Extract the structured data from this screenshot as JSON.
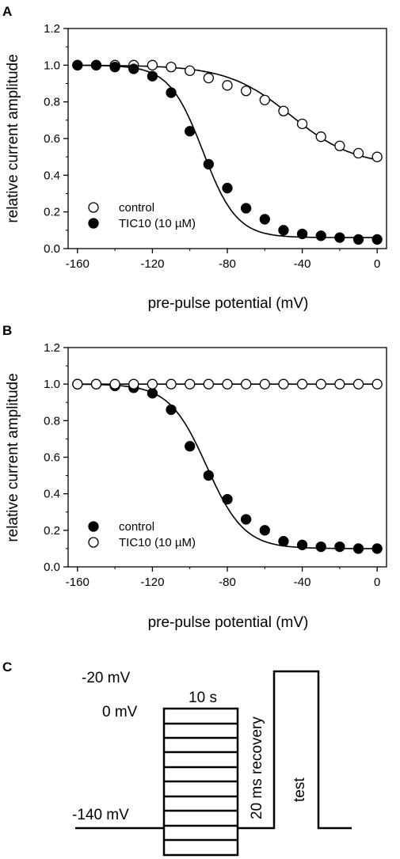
{
  "panels": {
    "A": {
      "label": "A"
    },
    "B": {
      "label": "B"
    },
    "C": {
      "label": "C"
    }
  },
  "chart_data": [
    {
      "type": "scatter",
      "panel": "A",
      "xlabel": "pre-pulse potential (mV)",
      "ylabel": "relative current amplitude",
      "xlim": [
        -165,
        5
      ],
      "ylim": [
        0.0,
        1.2
      ],
      "xticks": [
        "-160",
        "-120",
        "-80",
        "-40",
        "0"
      ],
      "yticks": [
        "0.0",
        "0.2",
        "0.4",
        "0.6",
        "0.8",
        "1.0",
        "1.2"
      ],
      "grid": false,
      "legend_position": "bottom-left",
      "series": [
        {
          "name": "control",
          "marker": "open-circle",
          "fit": "boltzmann",
          "x": [
            -160,
            -150,
            -140,
            -130,
            -120,
            -110,
            -100,
            -90,
            -80,
            -70,
            -60,
            -50,
            -40,
            -30,
            -20,
            -10,
            0
          ],
          "y": [
            1.0,
            1.0,
            1.0,
            1.0,
            1.0,
            0.99,
            0.97,
            0.93,
            0.89,
            0.86,
            0.81,
            0.75,
            0.68,
            0.61,
            0.56,
            0.52,
            0.5
          ]
        },
        {
          "name": "TIC10 (10 µM)",
          "marker": "filled-circle",
          "fit": "boltzmann",
          "x": [
            -160,
            -150,
            -140,
            -130,
            -120,
            -110,
            -100,
            -90,
            -80,
            -70,
            -60,
            -50,
            -40,
            -30,
            -20,
            -10,
            0
          ],
          "y": [
            1.0,
            1.0,
            0.99,
            0.98,
            0.94,
            0.85,
            0.64,
            0.46,
            0.33,
            0.22,
            0.16,
            0.1,
            0.08,
            0.07,
            0.06,
            0.05,
            0.05
          ]
        }
      ]
    },
    {
      "type": "scatter",
      "panel": "B",
      "xlabel": "pre-pulse potential (mV)",
      "ylabel": "relative current amplitude",
      "xlim": [
        -165,
        5
      ],
      "ylim": [
        0.0,
        1.2
      ],
      "xticks": [
        "-160",
        "-120",
        "-80",
        "-40",
        "0"
      ],
      "yticks": [
        "0.0",
        "0.2",
        "0.4",
        "0.6",
        "0.8",
        "1.0",
        "1.2"
      ],
      "grid": false,
      "legend_position": "bottom-left",
      "series": [
        {
          "name": "control",
          "marker": "filled-circle",
          "fit": "boltzmann",
          "x": [
            -160,
            -150,
            -140,
            -130,
            -120,
            -110,
            -100,
            -90,
            -80,
            -70,
            -60,
            -50,
            -40,
            -30,
            -20,
            -10,
            0
          ],
          "y": [
            1.0,
            1.0,
            0.99,
            0.98,
            0.95,
            0.86,
            0.66,
            0.5,
            0.37,
            0.26,
            0.2,
            0.14,
            0.12,
            0.11,
            0.11,
            0.1,
            0.1
          ]
        },
        {
          "name": "TIC10 (10 µM)",
          "marker": "open-circle",
          "fit": "constant",
          "x": [
            -160,
            -150,
            -140,
            -130,
            -120,
            -110,
            -100,
            -90,
            -80,
            -70,
            -60,
            -50,
            -40,
            -30,
            -20,
            -10,
            0
          ],
          "y": [
            1.0,
            1.0,
            1.0,
            1.0,
            1.0,
            1.0,
            1.0,
            1.0,
            1.0,
            1.0,
            1.0,
            1.0,
            1.0,
            1.0,
            1.0,
            1.0,
            1.0
          ]
        }
      ]
    }
  ],
  "protocol": {
    "label_minus20": "-20 mV",
    "label_0": "0 mV",
    "label_minus140": "-140 mV",
    "label_10s": "10 s",
    "label_recovery": "20 ms recovery",
    "label_test": "test"
  }
}
